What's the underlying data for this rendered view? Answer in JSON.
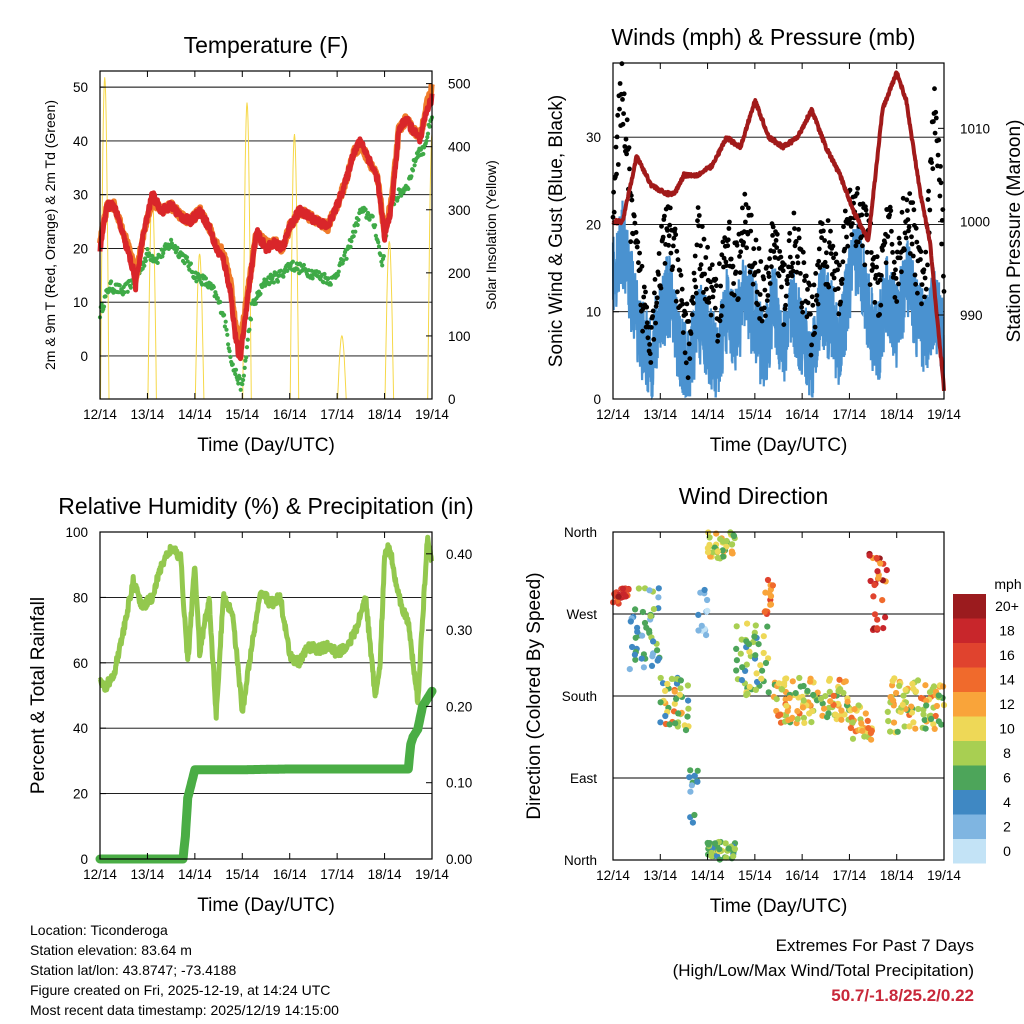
{
  "chart_data": [
    {
      "type": "line",
      "title": "Temperature (F)",
      "xlabel": "Time (Day/UTC)",
      "ylabel": "2m & 9m T (Red, Orange) & 2m Td (Green)",
      "y2label": "Solar Insolation (Yellow)",
      "x_ticks": [
        "12/14",
        "13/14",
        "14/14",
        "15/14",
        "16/14",
        "17/14",
        "18/14",
        "19/14"
      ],
      "ylim": [
        -8,
        53
      ],
      "yticks": [
        0,
        10,
        20,
        30,
        40,
        50
      ],
      "y2lim": [
        0,
        520
      ],
      "y2ticks": [
        0,
        100,
        200,
        300,
        400,
        500
      ],
      "series": [
        {
          "name": "2m T",
          "color": "#d9262a",
          "x": [
            0,
            0.15,
            0.3,
            0.5,
            0.7,
            0.75,
            0.9,
            1.1,
            1.3,
            1.5,
            1.7,
            1.9,
            2.1,
            2.3,
            2.45,
            2.6,
            2.75,
            2.85,
            2.95,
            3.1,
            3.3,
            3.5,
            3.7,
            3.85,
            4.0,
            4.2,
            4.4,
            4.6,
            4.8,
            5.0,
            5.2,
            5.35,
            5.5,
            5.7,
            5.85,
            6.0,
            6.15,
            6.3,
            6.45,
            6.6,
            6.75,
            6.9,
            7.0
          ],
          "values": [
            20,
            28,
            28,
            22,
            16,
            13,
            22,
            30,
            27,
            28,
            26,
            25,
            27,
            24,
            20,
            18,
            12,
            4,
            -1,
            10,
            23,
            20,
            21,
            20,
            24,
            27,
            26,
            25,
            24,
            28,
            33,
            38,
            40,
            36,
            33,
            22,
            28,
            42,
            44,
            42,
            40,
            46,
            48
          ]
        },
        {
          "name": "9m T",
          "color": "#f07c2a",
          "x": [
            0,
            0.15,
            0.3,
            0.5,
            0.7,
            0.75,
            0.9,
            1.1,
            1.3,
            1.5,
            1.7,
            1.9,
            2.1,
            2.3,
            2.45,
            2.6,
            2.75,
            2.85,
            2.95,
            3.1,
            3.3,
            3.5,
            3.7,
            3.85,
            4.0,
            4.2,
            4.4,
            4.6,
            4.8,
            5.0,
            5.2,
            5.35,
            5.5,
            5.7,
            5.85,
            6.0,
            6.15,
            6.3,
            6.45,
            6.6,
            6.75,
            6.9,
            7.0
          ],
          "values": [
            21,
            28,
            28,
            23,
            17,
            14,
            22,
            29,
            27,
            28,
            26,
            25,
            27,
            24,
            21,
            19,
            14,
            6,
            2,
            11,
            23,
            21,
            21,
            20,
            24,
            27,
            26,
            25,
            24,
            28,
            33,
            38,
            39,
            36,
            33,
            23,
            29,
            42,
            44,
            42,
            41,
            47,
            50
          ]
        },
        {
          "name": "2m Td",
          "color": "#3faa47",
          "x": [
            0,
            0.2,
            0.5,
            0.8,
            1.0,
            1.2,
            1.5,
            1.8,
            2.0,
            2.2,
            2.4,
            2.6,
            2.8,
            3.0,
            3.2,
            3.5,
            3.8,
            4.0,
            4.3,
            4.6,
            4.9,
            5.2,
            5.5,
            5.7,
            5.8,
            5.95,
            6.1,
            6.3,
            6.5,
            6.7,
            6.8,
            7.0
          ],
          "values": [
            8,
            13,
            12,
            15,
            19,
            18,
            21,
            18,
            15,
            14,
            12,
            8,
            -2,
            -6,
            9,
            14,
            15,
            17,
            16,
            15,
            14,
            19,
            27,
            26,
            24,
            17,
            28,
            30,
            32,
            38,
            38,
            44
          ]
        },
        {
          "name": "Solar Insolation",
          "color": "#f6d848",
          "axis": "y2",
          "peaks": [
            {
              "day": 0.1,
              "value": 510
            },
            {
              "day": 1.1,
              "value": 330
            },
            {
              "day": 2.1,
              "value": 230
            },
            {
              "day": 3.1,
              "value": 470
            },
            {
              "day": 4.1,
              "value": 420
            },
            {
              "day": 5.1,
              "value": 100
            },
            {
              "day": 6.1,
              "value": 250
            },
            {
              "day": 7.0,
              "value": 420
            }
          ]
        }
      ]
    },
    {
      "type": "scatter+line",
      "title": "Winds (mph) & Pressure (mb)",
      "xlabel": "Time (Day/UTC)",
      "ylabel": "Sonic Wind & Gust (Blue, Black)",
      "y2label": "Station Pressure (Maroon)",
      "x_ticks": [
        "12/14",
        "13/14",
        "14/14",
        "15/14",
        "16/14",
        "17/14",
        "18/14",
        "19/14"
      ],
      "ylim": [
        0,
        38.5
      ],
      "yticks": [
        0,
        10,
        20,
        30
      ],
      "y2lim": [
        981,
        1017
      ],
      "y2ticks": [
        990,
        1000,
        1010
      ],
      "series": [
        {
          "name": "Wind",
          "color": "#4a92d0",
          "x": [
            0,
            0.2,
            0.4,
            0.6,
            0.8,
            1.0,
            1.2,
            1.4,
            1.6,
            1.8,
            2.0,
            2.2,
            2.4,
            2.6,
            2.8,
            3.0,
            3.2,
            3.4,
            3.6,
            3.8,
            4.0,
            4.2,
            4.4,
            4.6,
            4.8,
            5.0,
            5.2,
            5.4,
            5.6,
            5.8,
            6.0,
            6.2,
            6.4,
            6.6,
            6.8,
            7.0
          ],
          "values": [
            14,
            18,
            12,
            7,
            4,
            10,
            12,
            6,
            3,
            9,
            7,
            4,
            10,
            8,
            12,
            9,
            5,
            11,
            6,
            10,
            7,
            4,
            11,
            9,
            6,
            13,
            17,
            10,
            6,
            12,
            8,
            14,
            10,
            7,
            11,
            6
          ]
        },
        {
          "name": "Gust",
          "color": "#000000",
          "x": [
            0,
            0.2,
            0.4,
            0.6,
            0.8,
            1.0,
            1.2,
            1.4,
            1.6,
            1.8,
            2.0,
            2.2,
            2.4,
            2.6,
            2.8,
            3.0,
            3.2,
            3.4,
            3.6,
            3.8,
            4.0,
            4.2,
            4.4,
            4.6,
            4.8,
            5.0,
            5.2,
            5.4,
            5.6,
            5.8,
            6.0,
            6.2,
            6.4,
            6.6,
            6.8,
            7.0
          ],
          "values": [
            22,
            36,
            20,
            12,
            8,
            16,
            20,
            12,
            6,
            18,
            14,
            10,
            18,
            14,
            20,
            16,
            10,
            19,
            12,
            18,
            14,
            8,
            18,
            16,
            12,
            22,
            20,
            18,
            12,
            20,
            14,
            22,
            17,
            12,
            34,
            16
          ]
        },
        {
          "name": "Station Pressure",
          "color": "#a11a1a",
          "axis": "y2",
          "x": [
            0,
            0.2,
            0.5,
            0.8,
            1.1,
            1.3,
            1.5,
            1.8,
            2.1,
            2.4,
            2.7,
            3.0,
            3.3,
            3.6,
            3.9,
            4.2,
            4.5,
            4.8,
            5.1,
            5.4,
            5.7,
            6.0,
            6.2,
            6.5,
            6.7,
            7.0
          ],
          "values": [
            1000,
            1000,
            1007,
            1004,
            1003,
            1003,
            1005,
            1005,
            1006,
            1009,
            1008,
            1013,
            1009,
            1008,
            1009,
            1012,
            1008,
            1005,
            1001,
            998,
            1012,
            1016,
            1013,
            1003,
            998,
            982
          ]
        }
      ]
    },
    {
      "type": "line",
      "title": "Relative Humidity (%) & Precipitation (in)",
      "xlabel": "Time (Day/UTC)",
      "ylabel": "Percent & Total Rainfall",
      "x_ticks": [
        "12/14",
        "13/14",
        "14/14",
        "15/14",
        "16/14",
        "17/14",
        "18/14",
        "19/14"
      ],
      "ylim": [
        0,
        100
      ],
      "yticks": [
        0,
        20,
        40,
        60,
        80,
        100
      ],
      "y2lim": [
        0,
        0.4286
      ],
      "y2ticks": [
        "0.00",
        "0.10",
        "0.20",
        "0.30",
        "0.40"
      ],
      "series": [
        {
          "name": "Relative Humidity",
          "color": "#93c84e",
          "x": [
            0,
            0.1,
            0.3,
            0.5,
            0.7,
            0.9,
            1.1,
            1.3,
            1.5,
            1.7,
            1.85,
            2.0,
            2.1,
            2.3,
            2.45,
            2.6,
            2.8,
            3.0,
            3.2,
            3.4,
            3.6,
            3.8,
            4.0,
            4.2,
            4.4,
            4.6,
            4.8,
            5.0,
            5.2,
            5.4,
            5.6,
            5.8,
            5.9,
            6.0,
            6.1,
            6.3,
            6.5,
            6.7,
            6.9,
            7.0
          ],
          "values": [
            55,
            52,
            57,
            70,
            85,
            77,
            80,
            90,
            95,
            92,
            60,
            90,
            63,
            80,
            44,
            80,
            75,
            45,
            65,
            82,
            78,
            80,
            62,
            60,
            65,
            64,
            65,
            63,
            65,
            70,
            80,
            50,
            58,
            92,
            96,
            80,
            72,
            48,
            98,
            90
          ]
        },
        {
          "name": "Total Precipitation",
          "color": "#4aad45",
          "axis": "y2",
          "x": [
            0,
            1.5,
            1.75,
            1.8,
            1.85,
            2.0,
            3.0,
            4.0,
            5.0,
            6.0,
            6.5,
            6.55,
            6.6,
            6.7,
            6.8,
            7.0
          ],
          "values": [
            0,
            0,
            0,
            0.03,
            0.08,
            0.117,
            0.117,
            0.118,
            0.118,
            0.118,
            0.118,
            0.15,
            0.16,
            0.17,
            0.2,
            0.22
          ]
        }
      ]
    },
    {
      "type": "scatter",
      "title": "Wind Direction",
      "xlabel": "Time (Day/UTC)",
      "ylabel": "Direction (Colored By Speed)",
      "x_ticks": [
        "12/14",
        "13/14",
        "14/14",
        "15/14",
        "16/14",
        "17/14",
        "18/14",
        "19/14"
      ],
      "y_tick_labels": [
        "North",
        "East",
        "South",
        "West",
        "North"
      ],
      "colorbar": {
        "title": "mph",
        "labels": [
          "20+",
          "18",
          "16",
          "14",
          "12",
          "10",
          "8",
          "6",
          "4",
          "2",
          "0"
        ],
        "colors": [
          "#9b1b1e",
          "#c8262b",
          "#e0432e",
          "#f06a2c",
          "#f9a43a",
          "#eed857",
          "#a8cf52",
          "#4da55a",
          "#3f88c3",
          "#7fb5e1",
          "#c3e3f6"
        ]
      },
      "clusters": [
        {
          "day0": 0,
          "day1": 0.35,
          "dir": [
            280,
            300
          ],
          "speed": [
            14,
            20
          ]
        },
        {
          "day0": 0.35,
          "day1": 1.0,
          "dir": [
            200,
            300
          ],
          "speed": [
            2,
            8
          ]
        },
        {
          "day0": 1.0,
          "day1": 1.6,
          "dir": [
            140,
            200
          ],
          "speed": [
            4,
            14
          ]
        },
        {
          "day0": 1.6,
          "day1": 1.8,
          "dir": [
            30,
            100
          ],
          "speed": [
            2,
            6
          ]
        },
        {
          "day0": 1.8,
          "day1": 2.0,
          "dir": [
            240,
            300
          ],
          "speed": [
            0,
            4
          ]
        },
        {
          "day0": 2.0,
          "day1": 2.6,
          "dir": [
            330,
            360
          ],
          "speed": [
            6,
            12
          ]
        },
        {
          "day0": 2.0,
          "day1": 2.6,
          "dir": [
            0,
            20
          ],
          "speed": [
            4,
            10
          ]
        },
        {
          "day0": 2.6,
          "day1": 3.3,
          "dir": [
            180,
            260
          ],
          "speed": [
            4,
            10
          ]
        },
        {
          "day0": 3.2,
          "day1": 3.4,
          "dir": [
            270,
            310
          ],
          "speed": [
            10,
            16
          ]
        },
        {
          "day0": 3.4,
          "day1": 5.0,
          "dir": [
            150,
            200
          ],
          "speed": [
            6,
            14
          ]
        },
        {
          "day0": 5.0,
          "day1": 5.5,
          "dir": [
            130,
            170
          ],
          "speed": [
            8,
            14
          ]
        },
        {
          "day0": 5.4,
          "day1": 5.8,
          "dir": [
            250,
            340
          ],
          "speed": [
            12,
            20
          ]
        },
        {
          "day0": 5.8,
          "day1": 7.0,
          "dir": [
            140,
            200
          ],
          "speed": [
            6,
            14
          ]
        }
      ]
    }
  ],
  "station": {
    "location": "Location: Ticonderoga",
    "elevation": "Station elevation: 83.64 m",
    "latlon": "Station lat/lon: 43.8747; -73.4188",
    "created": "Figure created on Fri, 2025-12-19, at 14:24 UTC",
    "timestamp": "Most recent data timestamp: 2025/12/19 14:15:00"
  },
  "extremes": {
    "title": "Extremes For Past 7 Days",
    "subtitle": "(High/Low/Max Wind/Total Precipitation)",
    "values": "50.7/-1.8/25.2/0.22"
  }
}
